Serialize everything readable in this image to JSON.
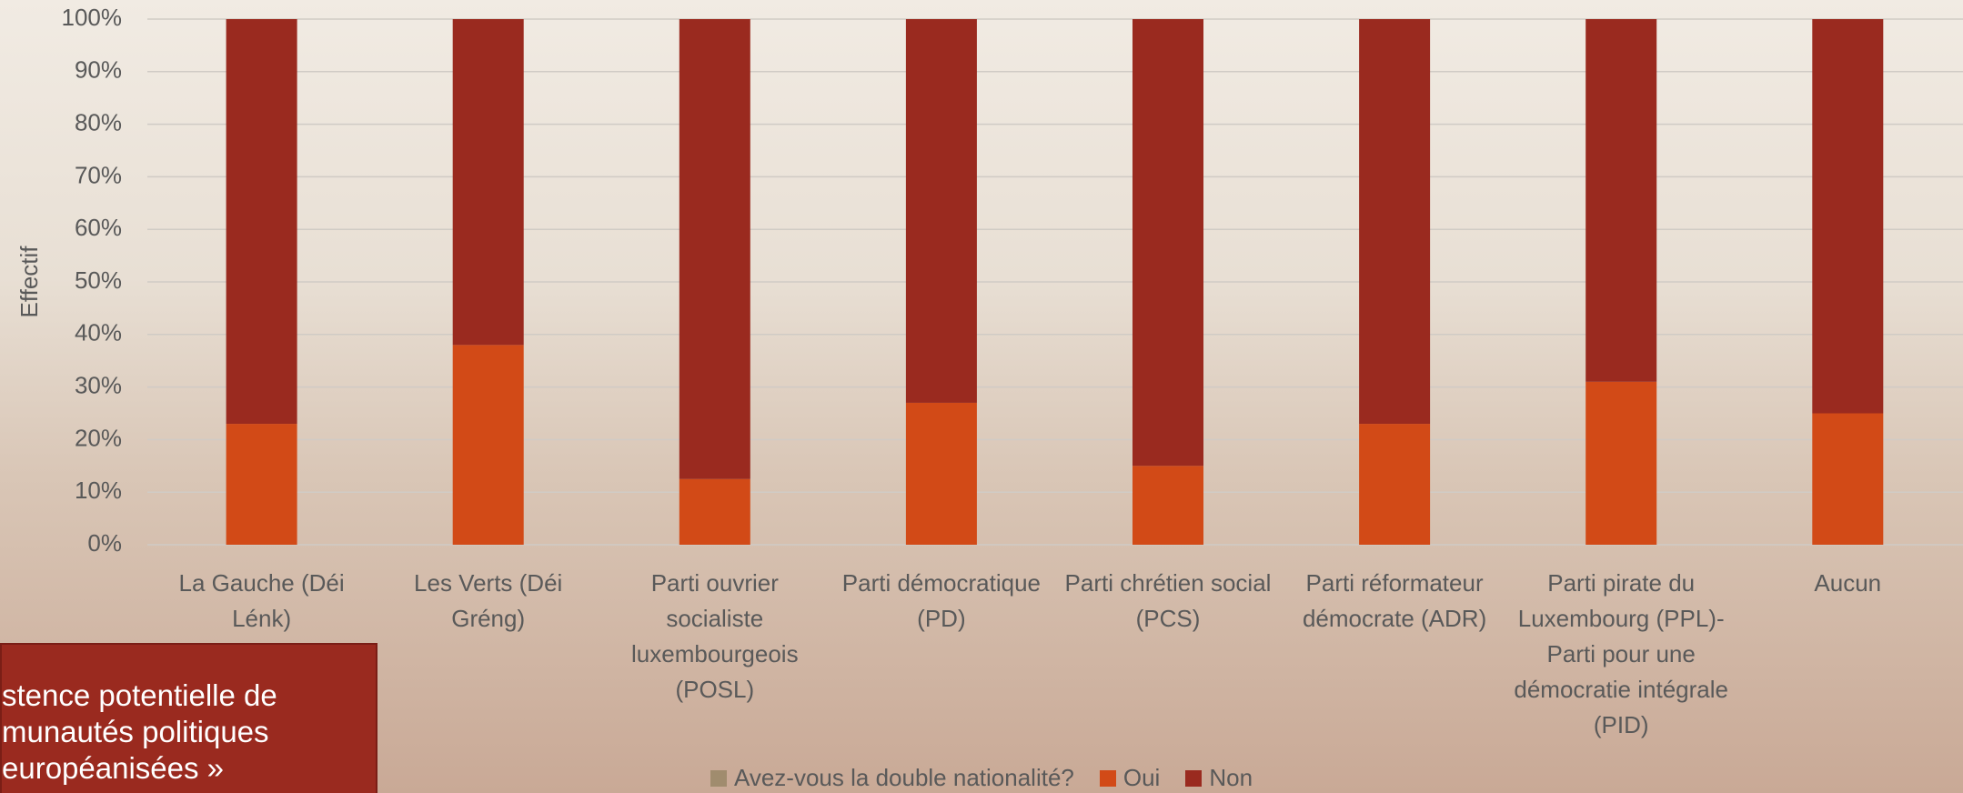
{
  "chart_data": {
    "type": "stacked_bar",
    "y_label": "Effectif",
    "categories": [
      "La Gauche (Déi Lénk)",
      "Les Verts (Déi Gréng)",
      "Parti ouvrier socialiste luxembourgeois (POSL)",
      "Parti démocratique (PD)",
      "Parti chrétien social (PCS)",
      "Parti réformateur démocrate (ADR)",
      "Parti pirate du Luxembourg (PPL)-Parti pour une démocratie intégrale (PID)",
      "Aucun"
    ],
    "legend_title": {
      "text": "Avez-vous la double nationalité?",
      "color": "#a08c6e"
    },
    "series": [
      {
        "name": "Oui",
        "color": "#d24a17",
        "values": [
          23,
          38,
          12.5,
          27,
          15,
          23,
          31,
          25
        ]
      },
      {
        "name": "Non",
        "color": "#9a2a1f",
        "values": [
          77,
          62,
          87.5,
          73,
          85,
          77,
          69,
          75
        ]
      }
    ],
    "ylim": [
      0,
      100
    ],
    "yticks": [
      {
        "value": 0,
        "label": "0%"
      },
      {
        "value": 10,
        "label": "10%"
      },
      {
        "value": 20,
        "label": "20%"
      },
      {
        "value": 30,
        "label": "30%"
      },
      {
        "value": 40,
        "label": "40%"
      },
      {
        "value": 50,
        "label": "50%"
      },
      {
        "value": 60,
        "label": "60%"
      },
      {
        "value": 70,
        "label": "70%"
      },
      {
        "value": 80,
        "label": "80%"
      },
      {
        "value": 90,
        "label": "90%"
      },
      {
        "value": 100,
        "label": "100%"
      }
    ],
    "grid": true
  },
  "annotation": [
    "stence potentielle de",
    "munautés politiques",
    "européanisées »"
  ]
}
